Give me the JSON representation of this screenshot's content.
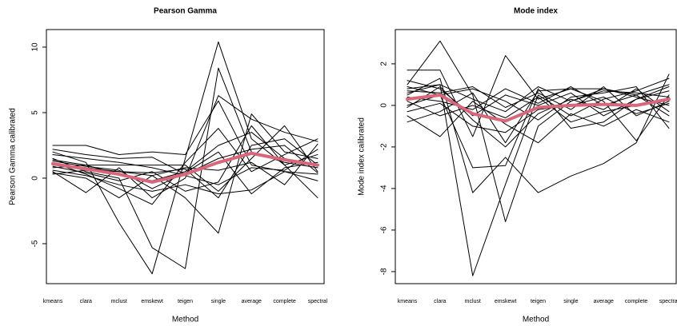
{
  "chart_data": [
    {
      "type": "line",
      "title": "Pearson Gamma",
      "xlabel": "Method",
      "ylabel": "Pearson Gamma calibrated",
      "categories": [
        "kmeans",
        "clara",
        "mclust",
        "emskewt",
        "teigen",
        "single",
        "average",
        "complete",
        "spectral"
      ],
      "ylim": [
        -8.05,
        11.34
      ],
      "yticks": [
        -5,
        0,
        5,
        10
      ],
      "series": [
        {
          "color": "#000000",
          "linewidth": 1,
          "values": [
            2.0,
            1.2,
            -3.4,
            -7.3,
            1.5,
            10.4,
            3.0,
            1.0,
            -1.5
          ]
        },
        {
          "color": "#000000",
          "linewidth": 1,
          "values": [
            1.5,
            0.5,
            0.0,
            -5.3,
            -6.9,
            8.4,
            2.0,
            1.2,
            0.8
          ]
        },
        {
          "color": "#000000",
          "linewidth": 1,
          "values": [
            0.5,
            -1.1,
            0.8,
            -1.5,
            0.0,
            6.3,
            4.5,
            3.5,
            2.8
          ]
        },
        {
          "color": "#000000",
          "linewidth": 1,
          "values": [
            2.5,
            2.5,
            1.8,
            2.0,
            1.8,
            5.9,
            1.0,
            0.5,
            0.3
          ]
        },
        {
          "color": "#000000",
          "linewidth": 1,
          "values": [
            1.0,
            0.8,
            0.5,
            0.2,
            -1.5,
            -4.2,
            4.9,
            2.0,
            1.5
          ]
        },
        {
          "color": "#000000",
          "linewidth": 1,
          "values": [
            0.8,
            1.0,
            1.0,
            1.0,
            1.0,
            -1.0,
            1.5,
            4.0,
            0.5
          ]
        },
        {
          "color": "#000000",
          "linewidth": 1,
          "values": [
            1.2,
            0.3,
            -0.8,
            -2.0,
            1.2,
            3.8,
            0.5,
            1.8,
            3.0
          ]
        },
        {
          "color": "#000000",
          "linewidth": 1,
          "values": [
            0.3,
            0.6,
            0.5,
            0.4,
            0.7,
            -1.5,
            2.5,
            3.0,
            1.0
          ]
        },
        {
          "color": "#000000",
          "linewidth": 1,
          "values": [
            1.8,
            1.5,
            1.2,
            0.8,
            0.2,
            -0.5,
            0.8,
            0.6,
            2.2
          ]
        },
        {
          "color": "#000000",
          "linewidth": 1,
          "values": [
            0.6,
            0.2,
            -0.5,
            -1.0,
            -0.5,
            -1.2,
            -0.9,
            0.5,
            -0.2
          ]
        },
        {
          "color": "#000000",
          "linewidth": 1,
          "values": [
            1.4,
            1.0,
            0.3,
            -0.2,
            0.5,
            2.5,
            3.5,
            1.5,
            0.9
          ]
        },
        {
          "color": "#000000",
          "linewidth": 1,
          "values": [
            0.9,
            0.4,
            -0.2,
            0.5,
            -1.0,
            -0.3,
            4.0,
            1.0,
            1.8
          ]
        },
        {
          "color": "#000000",
          "linewidth": 1,
          "values": [
            2.2,
            1.8,
            1.5,
            1.6,
            0.3,
            1.5,
            2.2,
            2.5,
            0.4
          ]
        },
        {
          "color": "#000000",
          "linewidth": 1,
          "values": [
            0.4,
            0.0,
            -1.5,
            0.2,
            0.8,
            0.6,
            1.2,
            -0.5,
            2.6
          ]
        },
        {
          "color": "#000000",
          "linewidth": 1,
          "values": [
            1.3,
            0.9,
            0.6,
            -0.8,
            0.4,
            2.0,
            -1.2,
            0.8,
            1.2
          ]
        },
        {
          "color": "#d9667a",
          "linewidth": 4,
          "values": [
            1.1,
            0.7,
            0.3,
            -0.3,
            0.3,
            1.2,
            1.9,
            1.4,
            1.0
          ]
        }
      ]
    },
    {
      "type": "line",
      "title": "Mode index",
      "xlabel": "Method",
      "ylabel": "Mode index calibrated",
      "categories": [
        "kmeans",
        "clara",
        "mclust",
        "emskewt",
        "teigen",
        "single",
        "average",
        "complete",
        "spectral"
      ],
      "ylim": [
        -8.58,
        3.65
      ],
      "yticks": [
        -8,
        -6,
        -4,
        -2,
        0,
        2
      ],
      "series": [
        {
          "color": "#000000",
          "linewidth": 1,
          "values": [
            0.8,
            1.0,
            -8.2,
            -3.8,
            0.5,
            -0.5,
            0.3,
            0.7,
            1.3
          ]
        },
        {
          "color": "#000000",
          "linewidth": 1,
          "values": [
            1.0,
            3.1,
            0.5,
            -5.6,
            -1.0,
            0.2,
            0.8,
            0.5,
            -0.5
          ]
        },
        {
          "color": "#000000",
          "linewidth": 1,
          "values": [
            0.5,
            1.3,
            -4.2,
            -2.5,
            -4.2,
            -3.4,
            -2.8,
            -1.8,
            1.5
          ]
        },
        {
          "color": "#000000",
          "linewidth": 1,
          "values": [
            1.7,
            1.7,
            -1.5,
            2.4,
            0.3,
            0.8,
            0.8,
            0.4,
            0.0
          ]
        },
        {
          "color": "#000000",
          "linewidth": 1,
          "values": [
            0.0,
            0.5,
            -3.0,
            -2.9,
            0.8,
            -1.1,
            -0.8,
            0.3,
            0.9
          ]
        },
        {
          "color": "#000000",
          "linewidth": 1,
          "values": [
            -0.8,
            -0.3,
            0.6,
            -1.8,
            0.7,
            0.8,
            0.2,
            -1.7,
            0.5
          ]
        },
        {
          "color": "#000000",
          "linewidth": 1,
          "values": [
            0.9,
            0.5,
            0.8,
            0.2,
            -0.7,
            0.4,
            0.6,
            0.9,
            -1.1
          ]
        },
        {
          "color": "#000000",
          "linewidth": 1,
          "values": [
            0.2,
            -0.5,
            0.0,
            -0.6,
            0.4,
            -0.8,
            -0.3,
            0.0,
            0.3
          ]
        },
        {
          "color": "#000000",
          "linewidth": 1,
          "values": [
            1.2,
            0.8,
            -0.5,
            0.5,
            0.0,
            0.6,
            -0.5,
            0.3,
            0.7
          ]
        },
        {
          "color": "#000000",
          "linewidth": 1,
          "values": [
            -0.3,
            0.1,
            -1.0,
            -1.3,
            -0.2,
            0.0,
            0.4,
            -0.4,
            0.1
          ]
        },
        {
          "color": "#000000",
          "linewidth": 1,
          "values": [
            0.6,
            1.0,
            0.3,
            -0.3,
            0.9,
            0.2,
            0.7,
            0.6,
            0.4
          ]
        },
        {
          "color": "#000000",
          "linewidth": 1,
          "values": [
            -0.5,
            -1.5,
            0.2,
            -0.9,
            -1.8,
            -0.4,
            -1.0,
            -0.2,
            -0.8
          ]
        },
        {
          "color": "#000000",
          "linewidth": 1,
          "values": [
            0.4,
            0.2,
            -0.2,
            0.8,
            0.1,
            0.9,
            0.0,
            0.5,
            1.0
          ]
        },
        {
          "color": "#000000",
          "linewidth": 1,
          "values": [
            0.7,
            0.6,
            0.9,
            -0.1,
            0.6,
            -0.2,
            0.9,
            -0.5,
            0.2
          ]
        },
        {
          "color": "#000000",
          "linewidth": 1,
          "values": [
            -0.1,
            0.9,
            -0.7,
            -2.0,
            -0.4,
            0.3,
            -0.2,
            0.8,
            -0.3
          ]
        },
        {
          "color": "#d9667a",
          "linewidth": 4,
          "values": [
            0.3,
            0.5,
            -0.4,
            -0.75,
            -0.1,
            0.0,
            0.05,
            0.0,
            0.3
          ]
        }
      ]
    }
  ]
}
